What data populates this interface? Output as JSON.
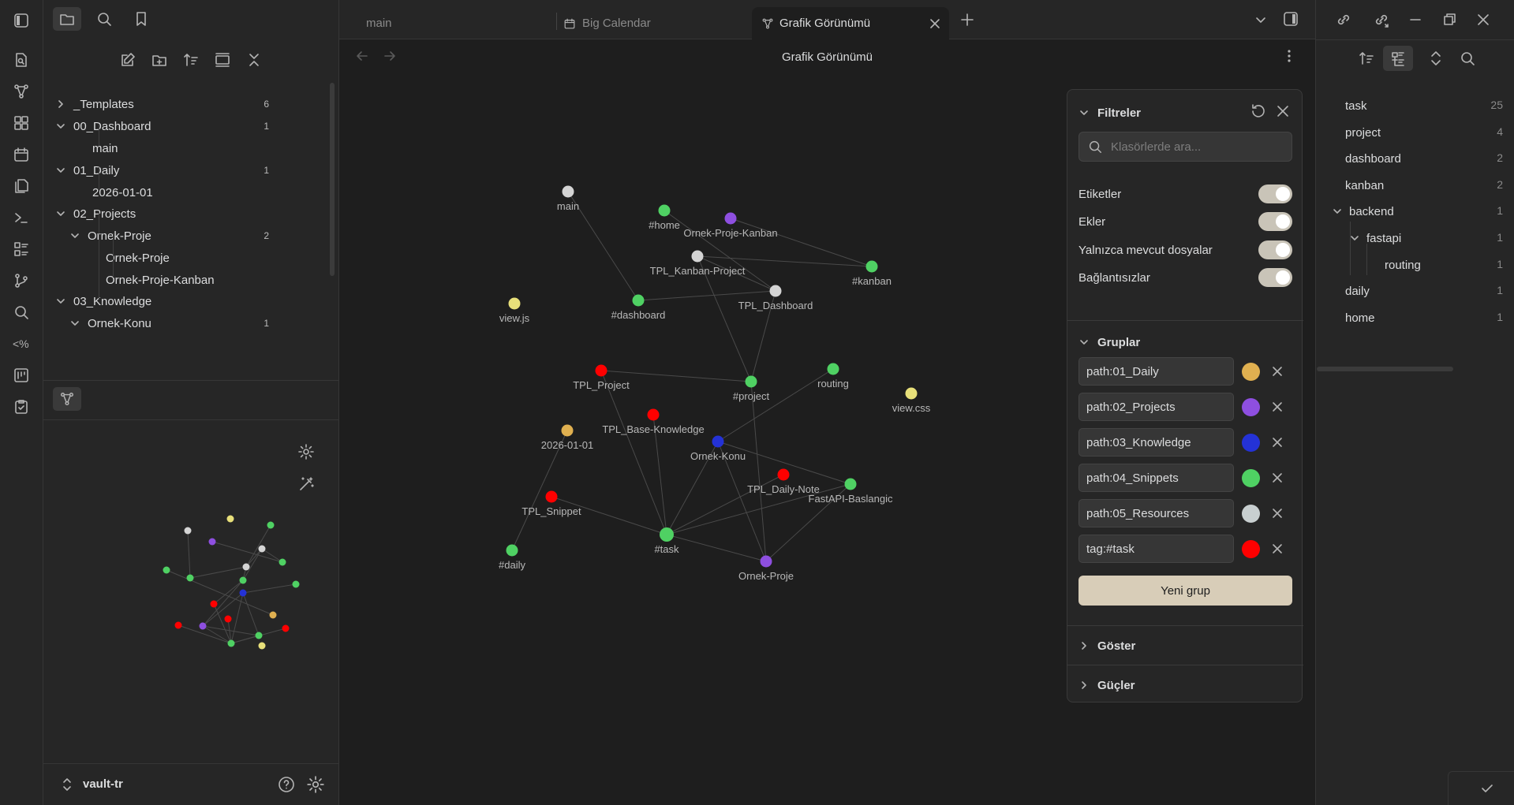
{
  "tabs": [
    {
      "label": "main",
      "active": false
    },
    {
      "label": "Big Calendar",
      "active": false
    },
    {
      "label": "Grafik Görünümü",
      "active": true
    }
  ],
  "view_title": "Grafik Görünümü",
  "file_tree": [
    {
      "label": "_Templates",
      "count": "6",
      "depth": 0,
      "expanded": false,
      "folder": true
    },
    {
      "label": "00_Dashboard",
      "count": "1",
      "depth": 0,
      "expanded": true,
      "folder": true
    },
    {
      "label": "main",
      "count": "",
      "depth": 1,
      "folder": false
    },
    {
      "label": "01_Daily",
      "count": "1",
      "depth": 0,
      "expanded": true,
      "folder": true
    },
    {
      "label": "2026-01-01",
      "count": "",
      "depth": 1,
      "folder": false
    },
    {
      "label": "02_Projects",
      "count": "",
      "depth": 0,
      "expanded": true,
      "folder": true
    },
    {
      "label": "Ornek-Proje",
      "count": "2",
      "depth": 1,
      "expanded": true,
      "folder": true
    },
    {
      "label": "Ornek-Proje",
      "count": "",
      "depth": 2,
      "folder": false
    },
    {
      "label": "Ornek-Proje-Kanban",
      "count": "",
      "depth": 2,
      "folder": false
    },
    {
      "label": "03_Knowledge",
      "count": "",
      "depth": 0,
      "expanded": true,
      "folder": true
    },
    {
      "label": "Ornek-Konu",
      "count": "1",
      "depth": 1,
      "expanded": true,
      "folder": true
    }
  ],
  "vault_name": "vault-tr",
  "graph": {
    "nodes": [
      {
        "id": "main",
        "label": "main",
        "color": "#d4d4d4"
      },
      {
        "id": "home",
        "label": "#home",
        "color": "#4fd163"
      },
      {
        "id": "opk",
        "label": "Ornek-Proje-Kanban",
        "color": "#8e4fe0"
      },
      {
        "id": "tkp",
        "label": "TPL_Kanban-Project",
        "color": "#d4d4d4"
      },
      {
        "id": "kanban",
        "label": "#kanban",
        "color": "#4fd163"
      },
      {
        "id": "tdash",
        "label": "TPL_Dashboard",
        "color": "#d4d4d4"
      },
      {
        "id": "viewjs",
        "label": "view.js",
        "color": "#e8e07a"
      },
      {
        "id": "dashboard",
        "label": "#dashboard",
        "color": "#4fd163"
      },
      {
        "id": "tproj",
        "label": "TPL_Project",
        "color": "#ff0000"
      },
      {
        "id": "project",
        "label": "#project",
        "color": "#4fd163"
      },
      {
        "id": "routing",
        "label": "routing",
        "color": "#4fd163"
      },
      {
        "id": "viewcss",
        "label": "view.css",
        "color": "#e8e07a"
      },
      {
        "id": "tbk",
        "label": "TPL_Base-Knowledge",
        "color": "#ff0000"
      },
      {
        "id": "d2026",
        "label": "2026-01-01",
        "color": "#e0b050"
      },
      {
        "id": "okonu",
        "label": "Ornek-Konu",
        "color": "#2432d6"
      },
      {
        "id": "tdn",
        "label": "TPL_Daily-Note",
        "color": "#ff0000"
      },
      {
        "id": "fapi",
        "label": "FastAPI-Baslangic",
        "color": "#4fd163"
      },
      {
        "id": "tsnip",
        "label": "TPL_Snippet",
        "color": "#ff0000"
      },
      {
        "id": "task",
        "label": "#task",
        "color": "#4fd163"
      },
      {
        "id": "daily",
        "label": "#daily",
        "color": "#4fd163"
      },
      {
        "id": "oproje",
        "label": "Ornek-Proje",
        "color": "#8e4fe0"
      }
    ],
    "edges": [
      [
        "main",
        "dashboard"
      ],
      [
        "home",
        "tdash"
      ],
      [
        "opk",
        "kanban"
      ],
      [
        "tkp",
        "kanban"
      ],
      [
        "tkp",
        "project"
      ],
      [
        "tkp",
        "tdash"
      ],
      [
        "dashboard",
        "tdash"
      ],
      [
        "tdash",
        "project"
      ],
      [
        "tproj",
        "project"
      ],
      [
        "tproj",
        "task"
      ],
      [
        "project",
        "oproje"
      ],
      [
        "routing",
        "okonu"
      ],
      [
        "tbk",
        "task"
      ],
      [
        "d2026",
        "daily"
      ],
      [
        "okonu",
        "task"
      ],
      [
        "okonu",
        "oproje"
      ],
      [
        "okonu",
        "fapi"
      ],
      [
        "tdn",
        "task"
      ],
      [
        "fapi",
        "task"
      ],
      [
        "fapi",
        "oproje"
      ],
      [
        "tsnip",
        "task"
      ],
      [
        "task",
        "oproje"
      ]
    ]
  },
  "filter_panel": {
    "filters_title": "Filtreler",
    "search_placeholder": "Klasörlerde ara...",
    "toggles": [
      {
        "label": "Etiketler",
        "on": true
      },
      {
        "label": "Ekler",
        "on": true
      },
      {
        "label": "Yalnızca mevcut dosyalar",
        "on": true
      },
      {
        "label": "Bağlantısızlar",
        "on": true
      }
    ],
    "groups_title": "Gruplar",
    "groups": [
      {
        "query": "path:01_Daily",
        "color": "#e0b050"
      },
      {
        "query": "path:02_Projects",
        "color": "#8e4fe0"
      },
      {
        "query": "path:03_Knowledge",
        "color": "#2432d6"
      },
      {
        "query": "path:04_Snippets",
        "color": "#4fd163"
      },
      {
        "query": "path:05_Resources",
        "color": "#c8cfd0"
      },
      {
        "query": "tag:#task",
        "color": "#ff0000"
      }
    ],
    "new_group_label": "Yeni grup",
    "display_title": "Göster",
    "forces_title": "Güçler"
  },
  "tags": [
    {
      "label": "task",
      "count": "25",
      "depth": 0
    },
    {
      "label": "project",
      "count": "4",
      "depth": 0
    },
    {
      "label": "dashboard",
      "count": "2",
      "depth": 0
    },
    {
      "label": "kanban",
      "count": "2",
      "depth": 0
    },
    {
      "label": "backend",
      "count": "1",
      "depth": 0,
      "folder": true
    },
    {
      "label": "fastapi",
      "count": "1",
      "depth": 1,
      "folder": true
    },
    {
      "label": "routing",
      "count": "1",
      "depth": 2
    },
    {
      "label": "daily",
      "count": "1",
      "depth": 0
    },
    {
      "label": "home",
      "count": "1",
      "depth": 0
    }
  ]
}
